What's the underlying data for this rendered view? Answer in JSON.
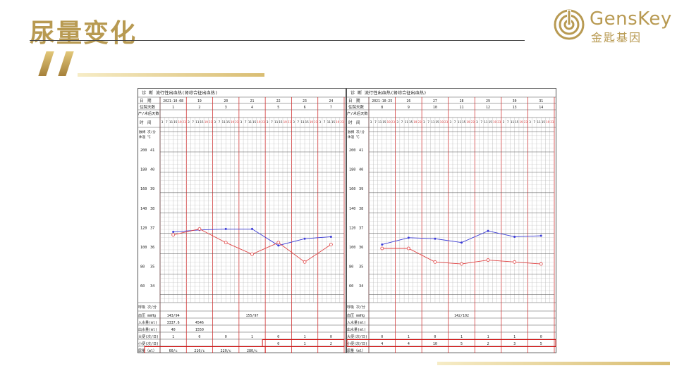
{
  "slide": {
    "title": "尿量变化",
    "logo_en": "GensKey",
    "logo_cn": "金匙基因",
    "brand_color": "#b89a52"
  },
  "left_chart": {
    "diagnosis": "诊 断  流行性出血热(肾综合征出血热)",
    "row_date": "日　期",
    "row_hosp_day": "住院天数",
    "row_postop": "产/术后天数",
    "row_time": "时　间",
    "pulse_header": "脉搏 次/分",
    "temp_header": "体温 ℃",
    "dates": [
      "2021-10-08",
      "19",
      "20",
      "21",
      "22",
      "23",
      "24"
    ],
    "hosp_days": [
      "1",
      "2",
      "3",
      "4",
      "5",
      "6",
      "7"
    ],
    "time_slots": [
      "3",
      "7",
      "11",
      "15",
      "19",
      "23"
    ],
    "pulse_ticks": [
      "200",
      "180",
      "160",
      "140",
      "120",
      "100",
      "80",
      "60"
    ],
    "temp_ticks": [
      "41",
      "40",
      "39",
      "38",
      "37",
      "36",
      "35",
      "34"
    ],
    "resp_label": "呼吸 次/分",
    "bp_label": "血压 mmHg",
    "intake_label": "入水量(ml)",
    "output_label": "出水量(ml)",
    "stool_label": "大便(次/日)",
    "urine_count_label": "小便(次/日)",
    "urine_vol_label": "尿量（ml）",
    "bp_values": [
      "143/94",
      "",
      "",
      "155/97",
      "",
      "",
      ""
    ],
    "intake_values": [
      "3337.6",
      "4546",
      "",
      "",
      "",
      "",
      ""
    ],
    "output_values": [
      "40",
      "1550",
      "",
      "",
      "",
      "",
      ""
    ],
    "stool_values": [
      "1",
      "0",
      "0",
      "1",
      "0",
      "1",
      "0"
    ],
    "urine_count_values": [
      "",
      "",
      "",
      "",
      "0",
      "1",
      "2"
    ],
    "urine_vol_values": [
      "60/c",
      "210/c",
      "220/c",
      "280/c",
      "",
      "",
      ""
    ]
  },
  "right_chart": {
    "diagnosis": "诊 断  流行性出血热(肾综合征出血热)",
    "dates": [
      "2021-10-25",
      "26",
      "27",
      "28",
      "29",
      "30",
      "31"
    ],
    "hosp_days": [
      "8",
      "9",
      "10",
      "11",
      "12",
      "13",
      "14"
    ],
    "bp_values": [
      "",
      "",
      "",
      "142/102",
      "",
      "",
      ""
    ],
    "stool_values": [
      "0",
      "1",
      "0",
      "1",
      "1",
      "1",
      "0"
    ],
    "urine_count_values": [
      "4",
      "4",
      "10",
      "5",
      "2",
      "3",
      "5"
    ]
  },
  "chart_data": [
    {
      "type": "line",
      "title": "",
      "xlabel": "时 间",
      "ylabel": "脉搏 次/分 / 体温 ℃",
      "x": [
        "10-08",
        "10-19",
        "10-20",
        "10-21",
        "10-22",
        "10-23",
        "10-24"
      ],
      "ylim": [
        60,
        200
      ],
      "series": [
        {
          "name": "脉搏",
          "color": "#3b3bd6",
          "values": [
            117,
            119,
            120,
            120,
            103,
            110,
            112
          ]
        },
        {
          "name": "体温",
          "color": "#e04444",
          "values": [
            36.7,
            37.0,
            36.3,
            35.7,
            36.3,
            35.3,
            36.2
          ]
        }
      ]
    },
    {
      "type": "line",
      "title": "",
      "xlabel": "时 间",
      "ylabel": "脉搏 次/分 / 体温 ℃",
      "x": [
        "10-25",
        "10-26",
        "10-27",
        "10-28",
        "10-29",
        "10-30",
        "10-31"
      ],
      "ylim": [
        60,
        200
      ],
      "series": [
        {
          "name": "脉搏",
          "color": "#3b3bd6",
          "values": [
            104,
            111,
            110,
            106,
            118,
            112,
            113
          ]
        },
        {
          "name": "体温",
          "color": "#e04444",
          "values": [
            36.0,
            36.0,
            35.3,
            35.2,
            35.4,
            35.3,
            35.2
          ]
        }
      ]
    }
  ]
}
